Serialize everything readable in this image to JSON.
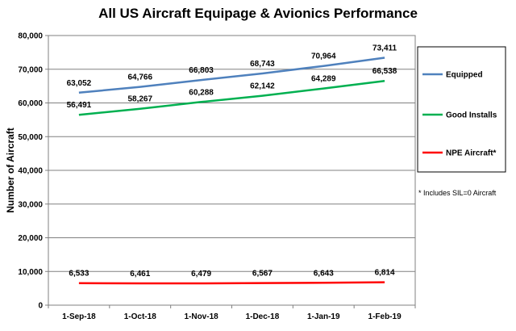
{
  "chart_data": {
    "type": "line",
    "title": "All US Aircraft Equipage & Avionics Performance",
    "xlabel": "",
    "ylabel": "Number of Aircraft",
    "categories": [
      "1-Sep-18",
      "1-Oct-18",
      "1-Nov-18",
      "1-Dec-18",
      "1-Jan-19",
      "1-Feb-19"
    ],
    "ylim": [
      0,
      80000
    ],
    "yticks": [
      "0",
      "10,000",
      "20,000",
      "30,000",
      "40,000",
      "50,000",
      "60,000",
      "70,000",
      "80,000"
    ],
    "grid": true,
    "legend_position": "right",
    "series": [
      {
        "name": "Equipped",
        "color": "#4F81BD",
        "values": [
          63052,
          64766,
          66803,
          68743,
          70964,
          73411
        ],
        "labels": [
          "63,052",
          "64,766",
          "66,803",
          "68,743",
          "70,964",
          "73,411"
        ]
      },
      {
        "name": "Good Installs",
        "color": "#00B050",
        "values": [
          56491,
          58267,
          60288,
          62142,
          64289,
          66538
        ],
        "labels": [
          "56,491",
          "58,267",
          "60,288",
          "62,142",
          "64,289",
          "66,538"
        ]
      },
      {
        "name": "NPE Aircraft*",
        "color": "#FF0000",
        "values": [
          6533,
          6461,
          6479,
          6567,
          6643,
          6814
        ],
        "labels": [
          "6,533",
          "6,461",
          "6,479",
          "6,567",
          "6,643",
          "6,814"
        ]
      }
    ],
    "footnote": "* Includes SIL=0 Aircraft"
  }
}
